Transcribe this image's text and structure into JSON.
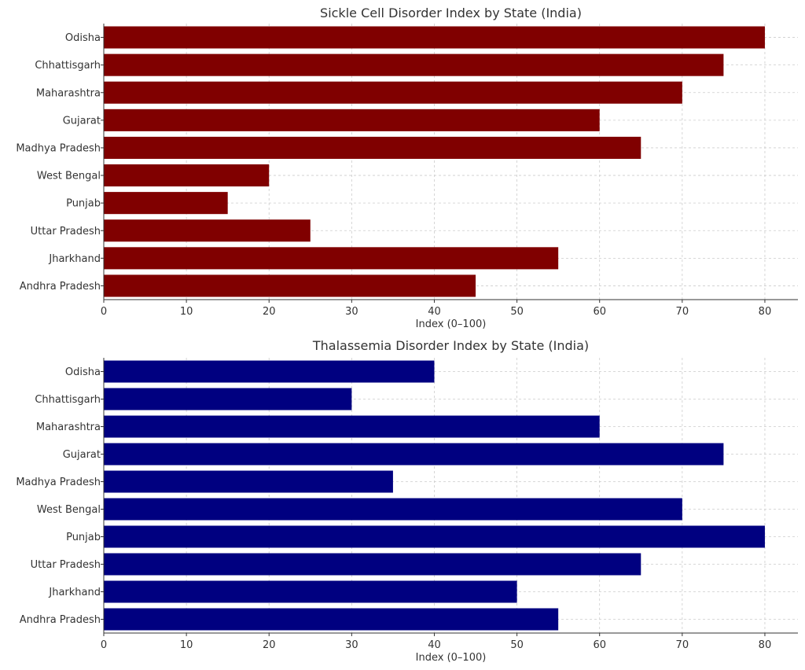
{
  "chart_data": [
    {
      "type": "bar",
      "orientation": "horizontal",
      "title": "Sickle Cell Disorder Index by State (India)",
      "xlabel": "Index (0–100)",
      "ylabel": "",
      "categories": [
        "Odisha",
        "Chhattisgarh",
        "Maharashtra",
        "Gujarat",
        "Madhya Pradesh",
        "West Bengal",
        "Punjab",
        "Uttar Pradesh",
        "Jharkhand",
        "Andhra Pradesh"
      ],
      "values": [
        80,
        75,
        70,
        60,
        65,
        20,
        15,
        25,
        55,
        45
      ],
      "xlim": [
        0,
        84
      ],
      "xticks": [
        0,
        10,
        20,
        30,
        40,
        50,
        60,
        70,
        80
      ],
      "grid": true,
      "color": "#800000"
    },
    {
      "type": "bar",
      "orientation": "horizontal",
      "title": "Thalassemia Disorder Index by State (India)",
      "xlabel": "Index (0–100)",
      "ylabel": "",
      "categories": [
        "Odisha",
        "Chhattisgarh",
        "Maharashtra",
        "Gujarat",
        "Madhya Pradesh",
        "West Bengal",
        "Punjab",
        "Uttar Pradesh",
        "Jharkhand",
        "Andhra Pradesh"
      ],
      "values": [
        40,
        30,
        60,
        75,
        35,
        70,
        80,
        65,
        50,
        55
      ],
      "xlim": [
        0,
        84
      ],
      "xticks": [
        0,
        10,
        20,
        30,
        40,
        50,
        60,
        70,
        80
      ],
      "grid": true,
      "color": "#000080"
    }
  ]
}
